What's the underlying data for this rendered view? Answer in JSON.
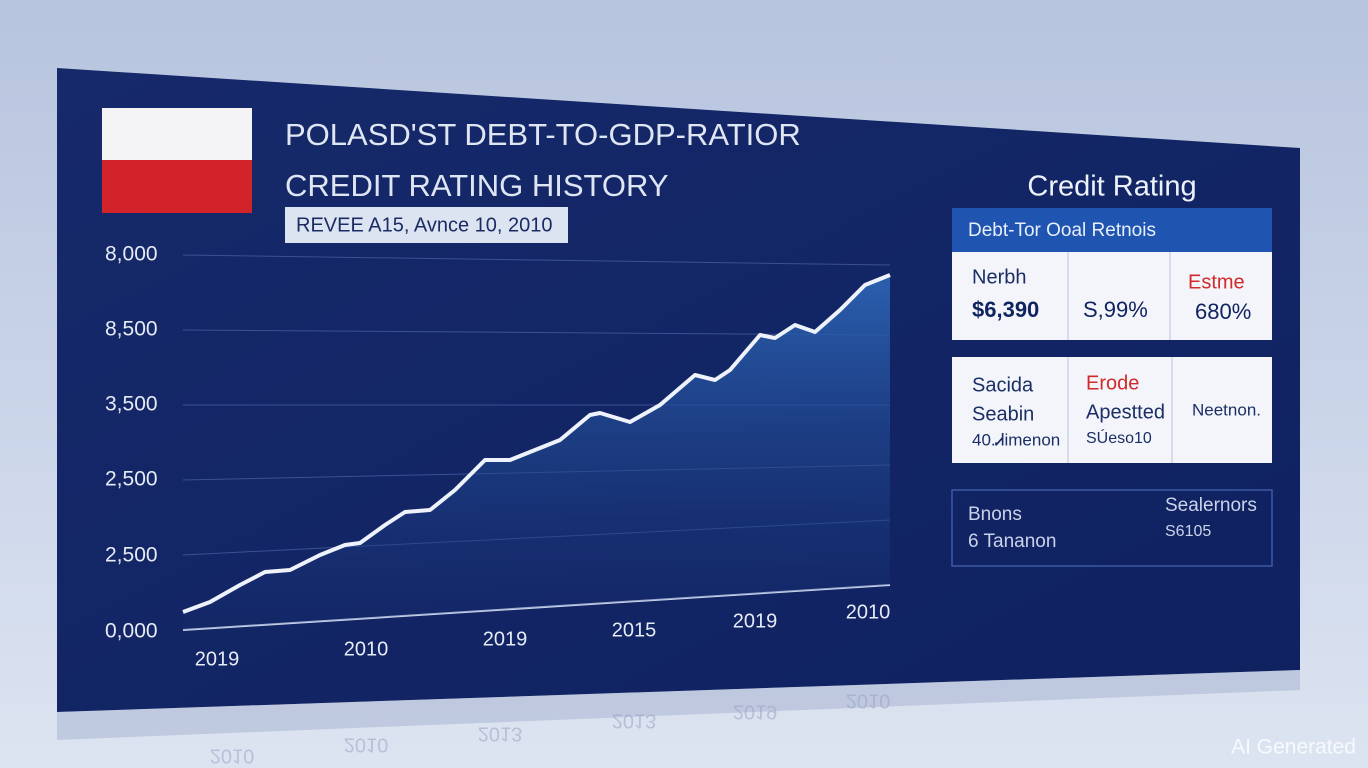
{
  "title_lines": [
    "POLASD'ST DEBT-TO-GDP-RATIOR",
    "CREDIT RATING HISTORY"
  ],
  "subtitle": "REVEE A15, Avnce 10, 2010",
  "y_axis_labels": [
    "8,000",
    "8,500",
    "3,500",
    "2,500",
    "2,500",
    "0,000"
  ],
  "x_axis_labels": [
    "2019",
    "2010",
    "2019",
    "2015",
    "2019",
    "2010"
  ],
  "panel": {
    "title": "Credit Rating",
    "table_header": "Debt-Tor Ooal Retnois",
    "row1": [
      [
        "Nerbh",
        "$6,390"
      ],
      [
        "Ѕ,99%"
      ],
      [
        "Estme",
        "680%"
      ]
    ],
    "row2": [
      [
        "Sacida",
        "Seabin",
        "40.Ꮧimenon"
      ],
      [
        "Erode",
        "Apestted",
        "SÚeso10"
      ],
      [
        "Neetnon."
      ]
    ],
    "summary": [
      "Bnons",
      "6 Tananon",
      "Sealernors",
      "S6105"
    ]
  },
  "reflection": [
    "2010",
    "2010",
    "2013",
    "2013",
    "2019",
    "2010"
  ],
  "watermark": "AI Generated"
}
